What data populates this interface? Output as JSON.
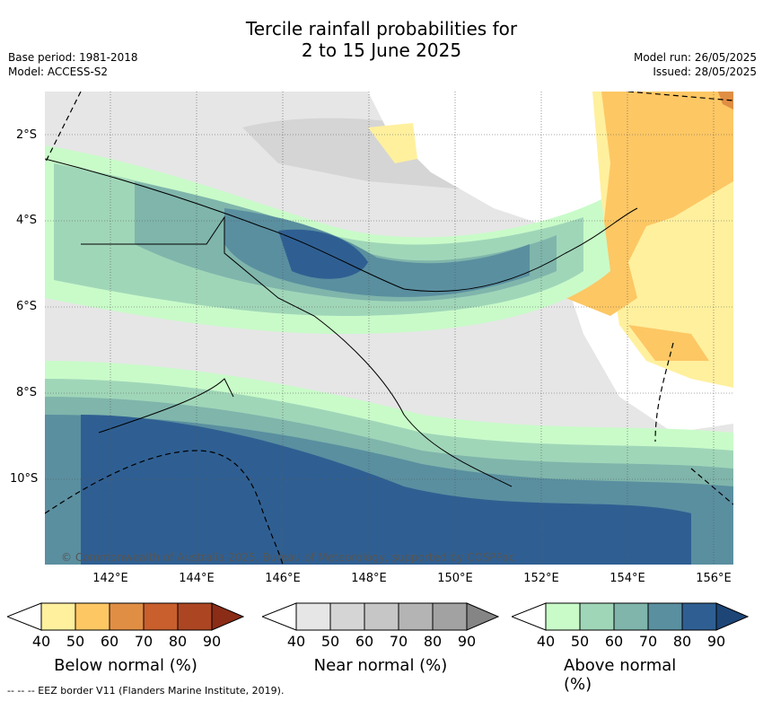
{
  "title": {
    "line1": "Tercile rainfall probabilities for",
    "line2": "2 to 15 June 2025"
  },
  "meta": {
    "base_period": "Base period: 1981-2018",
    "model": "Model: ACCESS-S2",
    "model_run": "Model run: 26/05/2025",
    "issued": "Issued: 28/05/2025"
  },
  "map": {
    "lat_labels": [
      "2°S",
      "4°S",
      "6°S",
      "8°S",
      "10°S"
    ],
    "lon_labels": [
      "142°E",
      "144°E",
      "146°E",
      "148°E",
      "150°E",
      "152°E",
      "154°E",
      "156°E"
    ],
    "copyright": "© Commonwealth of Australia 2025, Bureau of Meteorology, supported by COSPPac"
  },
  "colorbars": [
    {
      "label": "Below normal (%)",
      "ticks": [
        "40",
        "50",
        "60",
        "70",
        "80",
        "90"
      ],
      "colors": [
        "#fff09e",
        "#fdc764",
        "#e08e44",
        "#c85f2c",
        "#ac4622",
        "#8b2c16"
      ]
    },
    {
      "label": "Near normal (%)",
      "ticks": [
        "40",
        "50",
        "60",
        "70",
        "80",
        "90"
      ],
      "colors": [
        "#e6e6e6",
        "#d5d5d5",
        "#c6c6c6",
        "#b4b4b4",
        "#a2a2a2",
        "#858585"
      ]
    },
    {
      "label": "Above normal (%)",
      "ticks": [
        "40",
        "50",
        "60",
        "70",
        "80",
        "90"
      ],
      "colors": [
        "#c9fbc9",
        "#a0d6b8",
        "#7fb5ab",
        "#5a8fa0",
        "#2f5f92",
        "#1d4677"
      ]
    }
  ],
  "colors": {
    "white_bg": "#ffffff",
    "land": "#000000"
  },
  "footer": "--  --  -- EEZ border V11 (Flanders Marine Institute, 2019)."
}
